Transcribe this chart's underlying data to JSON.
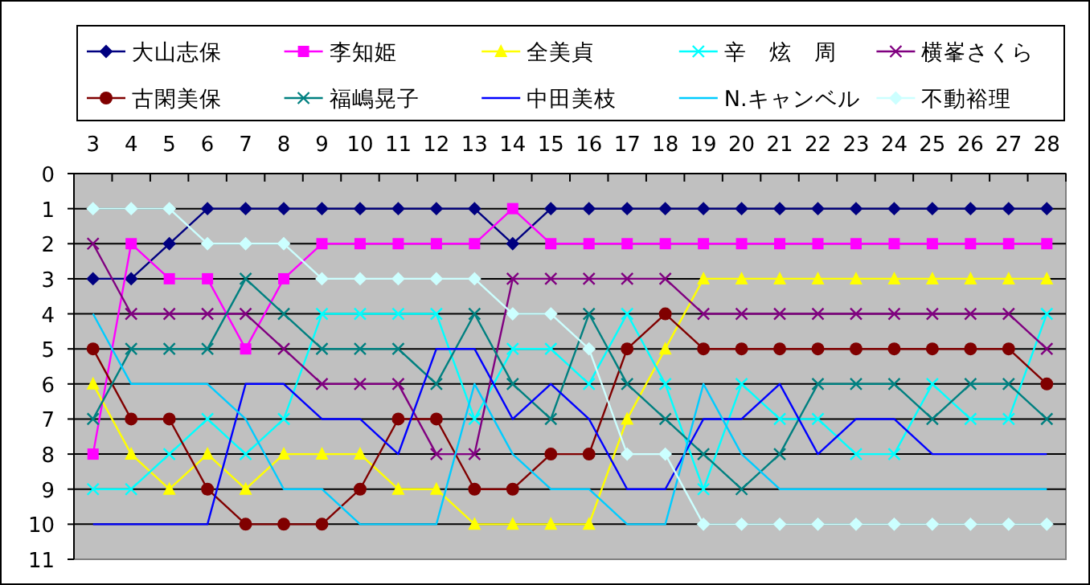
{
  "chart_data": {
    "type": "line",
    "categories": [
      "3",
      "4",
      "5",
      "6",
      "7",
      "8",
      "9",
      "10",
      "11",
      "12",
      "13",
      "14",
      "15",
      "16",
      "17",
      "18",
      "19",
      "20",
      "21",
      "22",
      "23",
      "24",
      "25",
      "26",
      "27",
      "28"
    ],
    "series": [
      {
        "name": "大山志保",
        "color": "#000080",
        "marker": "diamond",
        "values": [
          3,
          3,
          2,
          1,
          1,
          1,
          1,
          1,
          1,
          1,
          1,
          2,
          1,
          1,
          1,
          1,
          1,
          1,
          1,
          1,
          1,
          1,
          1,
          1,
          1,
          1
        ]
      },
      {
        "name": "李知姫",
        "color": "#ff00ff",
        "marker": "square",
        "values": [
          8,
          2,
          3,
          3,
          5,
          3,
          2,
          2,
          2,
          2,
          2,
          1,
          2,
          2,
          2,
          2,
          2,
          2,
          2,
          2,
          2,
          2,
          2,
          2,
          2,
          2
        ]
      },
      {
        "name": "全美貞",
        "color": "#ffff00",
        "marker": "triangle",
        "values": [
          6,
          8,
          9,
          8,
          9,
          8,
          8,
          8,
          9,
          9,
          10,
          10,
          10,
          10,
          7,
          5,
          3,
          3,
          3,
          3,
          3,
          3,
          3,
          3,
          3,
          3
        ]
      },
      {
        "name": "辛　炫　周",
        "color": "#00ffff",
        "marker": "cross",
        "values": [
          9,
          9,
          8,
          7,
          8,
          7,
          4,
          4,
          4,
          4,
          7,
          5,
          5,
          6,
          4,
          6,
          9,
          6,
          7,
          7,
          8,
          8,
          6,
          7,
          7,
          4
        ]
      },
      {
        "name": "横峯さくら",
        "color": "#800080",
        "marker": "cross",
        "values": [
          2,
          4,
          4,
          4,
          4,
          5,
          6,
          6,
          6,
          8,
          8,
          3,
          3,
          3,
          3,
          3,
          4,
          4,
          4,
          4,
          4,
          4,
          4,
          4,
          4,
          5
        ]
      },
      {
        "name": "古閑美保",
        "color": "#800000",
        "marker": "circle",
        "values": [
          5,
          7,
          7,
          9,
          10,
          10,
          10,
          9,
          7,
          7,
          9,
          9,
          8,
          8,
          5,
          4,
          5,
          5,
          5,
          5,
          5,
          5,
          5,
          5,
          5,
          6
        ]
      },
      {
        "name": "福嶋晃子",
        "color": "#008080",
        "marker": "cross",
        "values": [
          7,
          5,
          5,
          5,
          3,
          4,
          5,
          5,
          5,
          6,
          4,
          6,
          7,
          4,
          6,
          7,
          8,
          9,
          8,
          6,
          6,
          6,
          7,
          6,
          6,
          7
        ]
      },
      {
        "name": "中田美枝",
        "color": "#0000ff",
        "marker": "none",
        "values": [
          10,
          10,
          10,
          10,
          6,
          6,
          7,
          7,
          8,
          5,
          5,
          7,
          6,
          7,
          9,
          9,
          7,
          7,
          6,
          8,
          7,
          7,
          8,
          8,
          8,
          8
        ]
      },
      {
        "name": "N.キャンベル",
        "color": "#00ccff",
        "marker": "none",
        "values": [
          4,
          6,
          6,
          6,
          7,
          9,
          9,
          10,
          10,
          10,
          6,
          8,
          9,
          9,
          10,
          10,
          6,
          8,
          9,
          9,
          9,
          9,
          9,
          9,
          9,
          9
        ]
      },
      {
        "name": "不動裕理",
        "color": "#ccffff",
        "marker": "diamond",
        "values": [
          1,
          1,
          1,
          2,
          2,
          2,
          3,
          3,
          3,
          3,
          3,
          4,
          4,
          5,
          8,
          8,
          10,
          10,
          10,
          10,
          10,
          10,
          10,
          10,
          10,
          10
        ]
      }
    ],
    "ylim": [
      11,
      0
    ],
    "yticks": [
      0,
      1,
      2,
      3,
      4,
      5,
      6,
      7,
      8,
      9,
      10,
      11
    ],
    "grid": "y",
    "legend": "top"
  }
}
